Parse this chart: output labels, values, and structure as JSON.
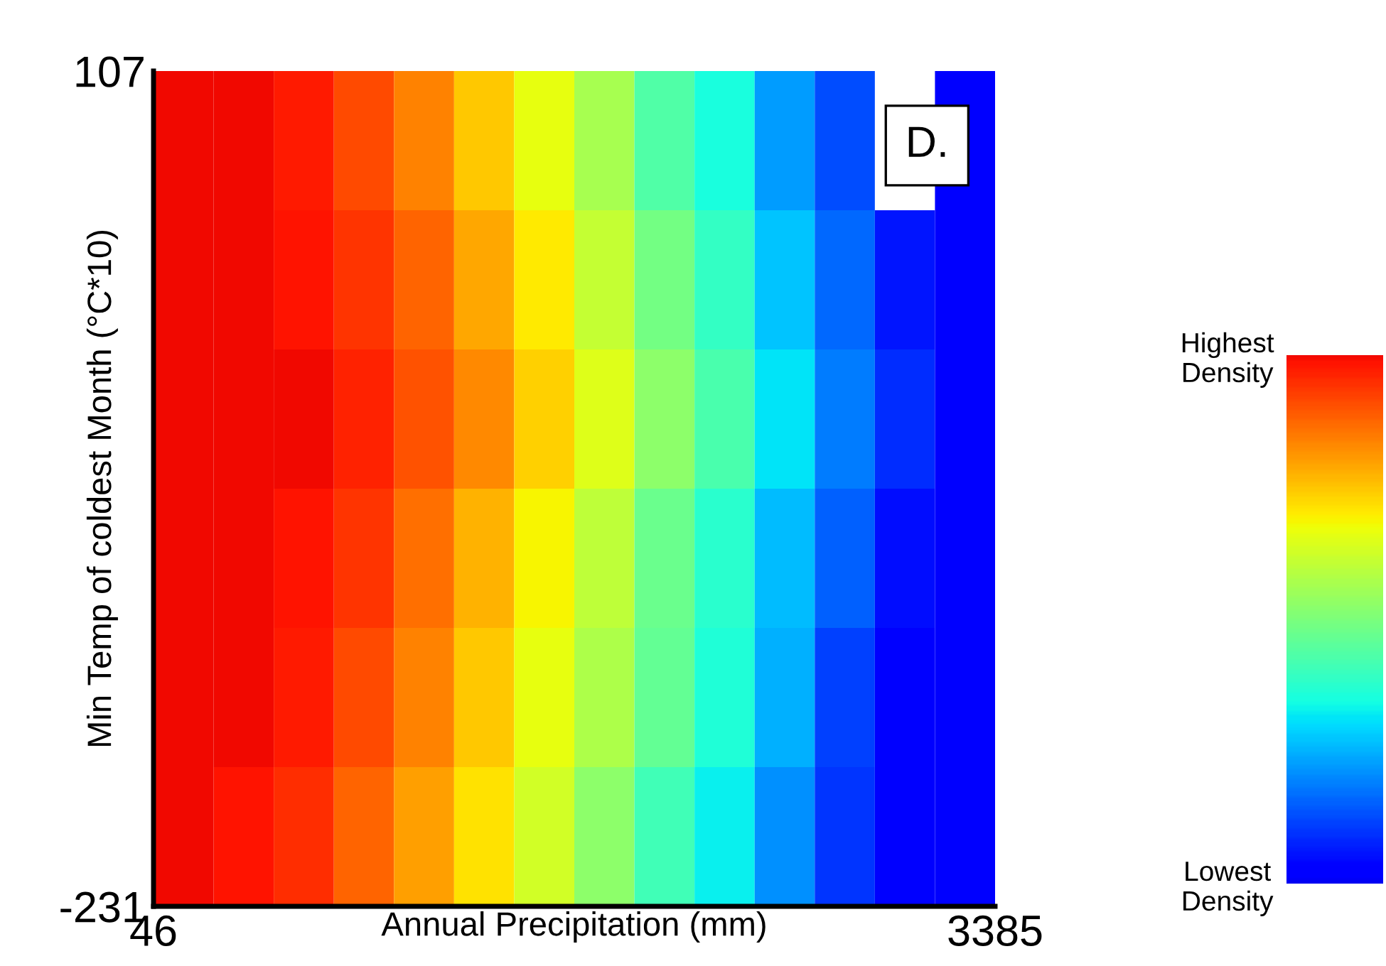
{
  "chart_data": {
    "type": "heatmap",
    "xlabel": "Annual Precipitation (mm)",
    "ylabel": "Min Temp of coldest Month (°C*10)",
    "x": [
      165,
      404,
      642,
      881,
      1119,
      1358,
      1596,
      1835,
      2073,
      2312,
      2550,
      2789,
      3027,
      3266
    ],
    "y": [
      78.8,
      22.5,
      -33.8,
      -90.2,
      -146.5,
      -202.8
    ],
    "cells": [
      [
        0.9,
        0.9,
        0.88,
        0.83,
        0.77,
        0.7,
        0.63,
        0.55,
        0.45,
        0.38,
        0.28,
        0.2,
        null,
        0.12
      ],
      [
        0.9,
        0.9,
        0.89,
        0.85,
        0.8,
        0.73,
        0.66,
        0.59,
        0.49,
        0.41,
        0.32,
        0.23,
        0.15,
        0.12
      ],
      [
        0.9,
        0.9,
        0.9,
        0.87,
        0.82,
        0.76,
        0.69,
        0.62,
        0.52,
        0.44,
        0.35,
        0.25,
        0.17,
        0.12
      ],
      [
        0.9,
        0.9,
        0.89,
        0.85,
        0.79,
        0.72,
        0.65,
        0.58,
        0.48,
        0.4,
        0.31,
        0.22,
        0.14,
        0.12
      ],
      [
        0.9,
        0.9,
        0.88,
        0.83,
        0.77,
        0.7,
        0.63,
        0.56,
        0.47,
        0.39,
        0.3,
        0.19,
        0.13,
        0.12
      ],
      [
        0.9,
        0.89,
        0.86,
        0.8,
        0.74,
        0.67,
        0.6,
        0.52,
        0.43,
        0.36,
        0.27,
        0.18,
        0.12,
        0.12
      ]
    ],
    "xlim": [
      46,
      3385
    ],
    "ylim": [
      -231,
      107
    ],
    "xticks": [
      46,
      3385
    ],
    "yticks": [
      -231,
      107
    ],
    "clim": [
      0.1,
      0.9
    ],
    "cticks": [
      {
        "value": 0.1,
        "label": "Lowest\nDensity"
      },
      {
        "value": 0.9,
        "label": "Highest\nDensity"
      }
    ],
    "annotations": [
      "D."
    ]
  }
}
